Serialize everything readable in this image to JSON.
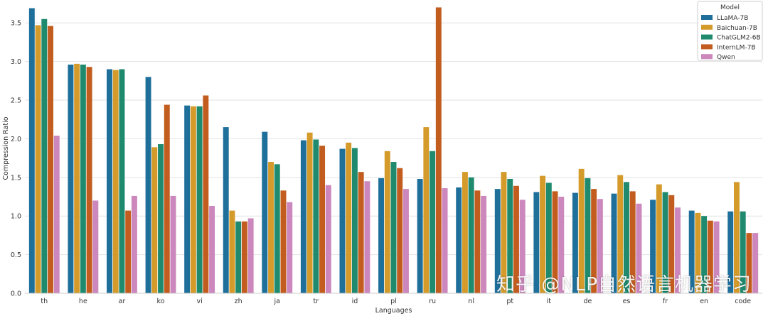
{
  "chart_data": {
    "type": "bar",
    "xlabel": "Languages",
    "ylabel": "Compression Ratio",
    "ylim": [
      0,
      3.75
    ],
    "yticks": [
      "0.0",
      "0.5",
      "1.0",
      "1.5",
      "2.0",
      "2.5",
      "3.0",
      "3.5"
    ],
    "grid": "horizontal",
    "legend_title": "Model",
    "legend_position": "top-right",
    "categories": [
      "th",
      "he",
      "ar",
      "ko",
      "vi",
      "zh",
      "ja",
      "tr",
      "id",
      "pl",
      "ru",
      "nl",
      "pt",
      "it",
      "de",
      "es",
      "fr",
      "en",
      "code"
    ],
    "series": [
      {
        "name": "LLaMA-7B",
        "color": "#1f6f9b",
        "values": [
          3.69,
          2.96,
          2.9,
          2.8,
          2.43,
          2.15,
          2.09,
          1.98,
          1.87,
          1.49,
          1.48,
          1.37,
          1.35,
          1.31,
          1.3,
          1.29,
          1.21,
          1.07,
          1.06
        ]
      },
      {
        "name": "Baichuan-7B",
        "color": "#d49a2a",
        "values": [
          3.47,
          2.97,
          2.89,
          1.89,
          2.42,
          1.07,
          1.7,
          2.08,
          1.95,
          1.84,
          2.15,
          1.57,
          1.57,
          1.52,
          1.61,
          1.53,
          1.41,
          1.04,
          1.44
        ]
      },
      {
        "name": "ChatGLM2-6B",
        "color": "#1f8a6e",
        "values": [
          3.55,
          2.96,
          2.9,
          1.93,
          2.42,
          0.93,
          1.67,
          1.99,
          1.88,
          1.7,
          1.84,
          1.5,
          1.48,
          1.43,
          1.49,
          1.44,
          1.31,
          1.0,
          1.06
        ]
      },
      {
        "name": "InternLM-7B",
        "color": "#c25d1f",
        "values": [
          3.46,
          2.93,
          1.07,
          2.44,
          2.56,
          0.93,
          1.33,
          1.91,
          1.57,
          1.62,
          3.7,
          1.33,
          1.39,
          1.32,
          1.35,
          1.32,
          1.27,
          0.94,
          0.78
        ]
      },
      {
        "name": "Qwen",
        "color": "#cc87bd",
        "values": [
          2.04,
          1.2,
          1.26,
          1.26,
          1.13,
          0.97,
          1.18,
          1.4,
          1.45,
          1.35,
          1.36,
          1.26,
          1.21,
          1.25,
          1.22,
          1.16,
          1.11,
          0.93,
          0.78
        ]
      }
    ]
  },
  "watermark": "知乎 @NLP自然语言机器学习"
}
